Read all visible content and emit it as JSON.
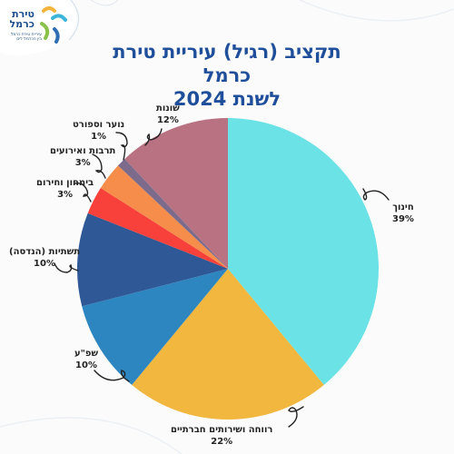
{
  "logo": {
    "name": "טירת כרמל",
    "tagline": "עיריית טירת כרמל בין הכרמל לים"
  },
  "title": {
    "line1": "תקציב (רגיל) עיריית טירת כרמל",
    "line2": "לשנת 2024"
  },
  "colors": {
    "title": "#1f4f9a",
    "background": "#fbfbfb"
  },
  "chart_data": {
    "type": "pie",
    "title": "תקציב (רגיל) עיריית טירת כרמל לשנת 2024",
    "unit": "%",
    "slices": [
      {
        "label": "חינוך",
        "value": 39,
        "display": "39%",
        "color": "#6ae2e6"
      },
      {
        "label": "רווחה ושירותים חברתיים",
        "value": 22,
        "display": "22%",
        "color": "#f1b73f"
      },
      {
        "label": "שפ\"ע",
        "value": 10,
        "display": "10%",
        "color": "#2e86c1"
      },
      {
        "label": "תשתיות (הנדסה)",
        "value": 10,
        "display": "10%",
        "color": "#2e5896"
      },
      {
        "label": "בימחון וחירום",
        "value": 3,
        "display": "3%",
        "color": "#f8413a"
      },
      {
        "label": "תרבות ואירועים",
        "value": 3,
        "display": "3%",
        "color": "#f68d4a"
      },
      {
        "label": "נוער וספורט",
        "value": 1,
        "display": "1%",
        "color": "#7d6b8c"
      },
      {
        "label": "שונות",
        "value": 12,
        "display": "12%",
        "color": "#b87282"
      }
    ]
  }
}
